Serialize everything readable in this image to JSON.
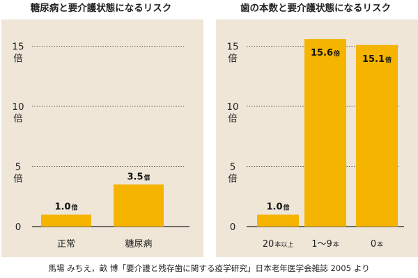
{
  "colors": {
    "panel_bg": "#efe6d8",
    "bar": "#f5b400",
    "text": "#222222",
    "label_on_bar": "#111111"
  },
  "source_note": "馬場 みちえ，畝 博「要介護と残存歯に関する疫学研究」日本老年医学会雑誌 2005 より",
  "chart_data": [
    {
      "type": "bar",
      "title": "糖尿病と要介護状態になるリスク",
      "unit": "倍",
      "categories": [
        "正常",
        "糖尿病"
      ],
      "values": [
        1.0,
        3.5
      ],
      "value_labels": [
        "1.0",
        "3.5"
      ],
      "yticks": [
        0,
        5,
        10,
        15
      ],
      "ylim": [
        0,
        16.5
      ],
      "grid": true,
      "xlabel": "",
      "ylabel": ""
    },
    {
      "type": "bar",
      "title": "歯の本数と要介護状態になるリスク",
      "unit": "倍",
      "categories": [
        "20本以上",
        "1〜9本",
        "0本"
      ],
      "category_parts": [
        [
          "20",
          "本以上"
        ],
        [
          "1〜9",
          "本"
        ],
        [
          "0",
          "本"
        ]
      ],
      "values": [
        1.0,
        15.6,
        15.1
      ],
      "value_labels": [
        "1.0",
        "15.6",
        "15.1"
      ],
      "label_inside_bar": [
        false,
        true,
        true
      ],
      "yticks": [
        0,
        5,
        10,
        15
      ],
      "ylim": [
        0,
        16.5
      ],
      "grid": true,
      "xlabel": "",
      "ylabel": ""
    }
  ]
}
